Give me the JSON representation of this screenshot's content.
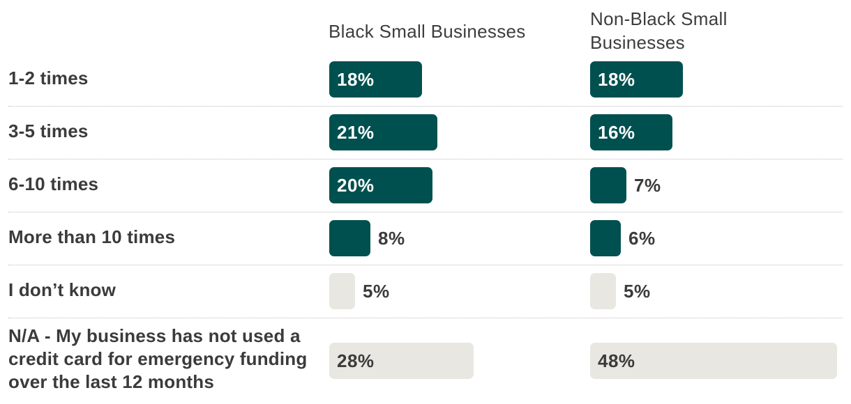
{
  "chart_data": {
    "type": "bar",
    "orientation": "horizontal",
    "categories": [
      "1-2 times",
      "3-5 times",
      "6-10 times",
      "More than 10 times",
      "I don’t know",
      "N/A - My business has not used a credit card for emergency funding over the last 12 months"
    ],
    "series": [
      {
        "name": "Black Small Businesses",
        "values": [
          18,
          21,
          20,
          8,
          5,
          28
        ]
      },
      {
        "name": "Non-Black Small Businesses",
        "values": [
          18,
          16,
          7,
          6,
          5,
          48
        ]
      }
    ],
    "value_labels": {
      "Black Small Businesses": [
        "18%",
        "21%",
        "20%",
        "8%",
        "5%",
        "28%"
      ],
      "Non-Black Small Businesses": [
        "18%",
        "16%",
        "7%",
        "6%",
        "5%",
        "48%"
      ]
    },
    "unit": "%",
    "title": "",
    "xlabel": "",
    "ylabel": "",
    "xlim": [
      0,
      48
    ],
    "grid": false,
    "legend": "column headers at top"
  },
  "colors": {
    "highlight_bar": "#00504f",
    "muted_bar": "#e8e7e1",
    "label_on_dark": "#ffffff",
    "label_dark": "#3b3b3b"
  },
  "muted_categories": [
    4,
    5
  ]
}
